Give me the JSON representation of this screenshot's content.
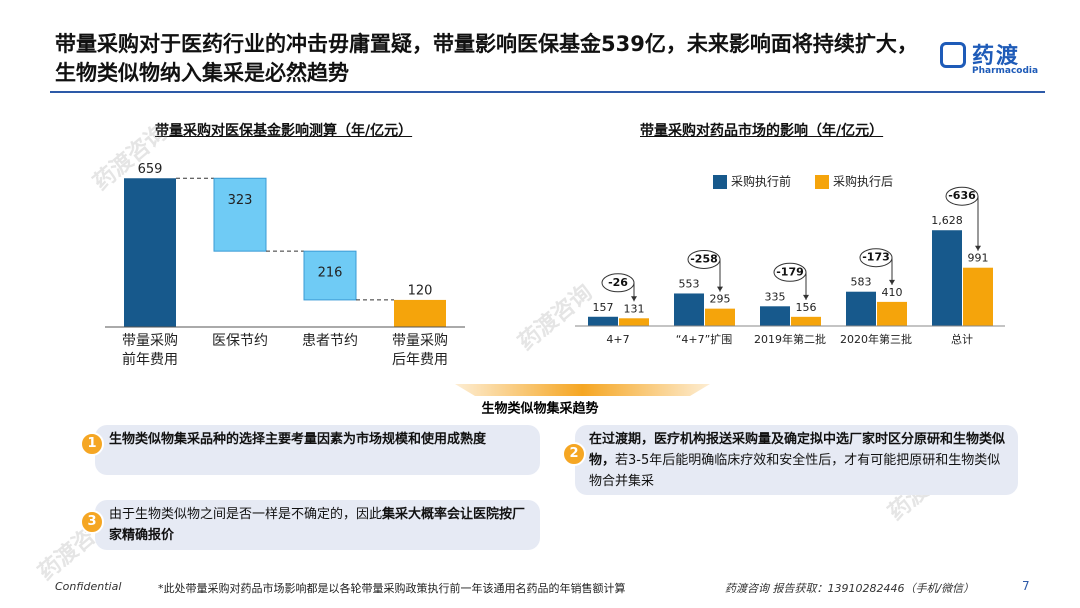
{
  "header": {
    "title": "带量采购对于医药行业的冲击毋庸置疑，带量影响医保基金539亿，未来影响面将持续扩大，生物类似物纳入集采是必然趋势",
    "logo_cn": "药渡",
    "logo_en": "Pharmacodia"
  },
  "watermark": "药渡咨询",
  "chart_data": [
    {
      "type": "waterfall",
      "title": "带量采购对医保基金影响测算（年/亿元）",
      "categories": [
        "带量采购前年费用",
        "医保节约",
        "患者节约",
        "带量采购后年费用"
      ],
      "values": [
        659,
        323,
        216,
        120
      ],
      "measure": [
        "total",
        "decrease",
        "decrease",
        "total"
      ],
      "colors": [
        "#17598c",
        "#6fcbf5",
        "#6fcbf5",
        "#f5a40b"
      ],
      "ylim": [
        0,
        700
      ]
    },
    {
      "type": "bar",
      "title": "带量采购对药品市场的影响（年/亿元）",
      "categories": [
        "4+7",
        "“4+7”扩围",
        "2019年第二批",
        "2020年第三批",
        "总计"
      ],
      "series": [
        {
          "name": "采购执行前",
          "color": "#17598c",
          "values": [
            157,
            553,
            335,
            583,
            1628
          ],
          "value_labels": [
            "157",
            "553",
            "335",
            "583",
            "1,628"
          ]
        },
        {
          "name": "采购执行后",
          "color": "#f5a40b",
          "values": [
            131,
            295,
            156,
            410,
            991
          ]
        }
      ],
      "diffs": [
        -26,
        -258,
        -179,
        -173,
        -636
      ],
      "legend": "top",
      "ylim": [
        0,
        1700
      ]
    }
  ],
  "trend": {
    "title": "生物类似物集采趋势",
    "items": [
      {
        "number": "1",
        "parts": [
          {
            "text": "生物类似物集采品种的选择主要考量因素为市场规模和使用成熟度",
            "bold": true
          }
        ]
      },
      {
        "number": "2",
        "parts": [
          {
            "text": "在过渡期，医疗机构报送采购量及确定拟中选厂家时区分原研和生物类似物，",
            "bold": true
          },
          {
            "text": "若3-5年后能明确临床疗效和安全性后，才有可能把原研和生物类似物合并集采",
            "bold": false
          }
        ]
      },
      {
        "number": "3",
        "parts": [
          {
            "text": "由于生物类似物之间是否一样是不确定的，因此",
            "bold": false
          },
          {
            "text": "集采大概率会让医院按厂家精确报价",
            "bold": true
          }
        ]
      }
    ]
  },
  "footer": {
    "confidential": "Confidential",
    "note": "*此处带量采购对药品市场影响都是以各轮带量采购政策执行前一年该通用名药品的年销售额计算",
    "contact": "药渡咨询 报告获取：13910282446（手机/微信）",
    "page": 7
  }
}
